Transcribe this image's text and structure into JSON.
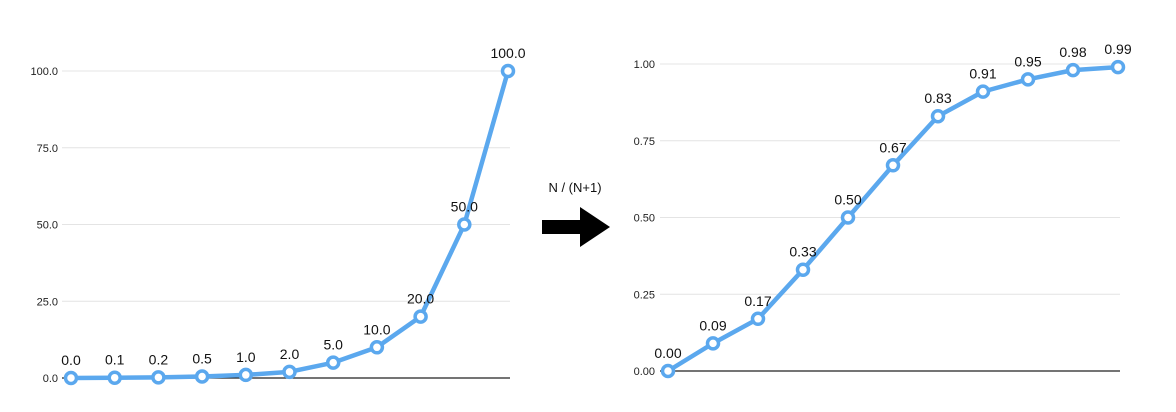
{
  "colors": {
    "series": "#5BA8EE",
    "arrow": "#000000"
  },
  "transform": {
    "label": "N / (N+1)",
    "icon": "right-arrow-icon"
  },
  "chart_data": [
    {
      "type": "line",
      "x": [
        "0.0",
        "0.1",
        "0.2",
        "0.5",
        "1.0",
        "2.0",
        "5.0",
        "10.0",
        "20.0",
        "50.0",
        "100.0"
      ],
      "series": [
        {
          "values": [
            0.0,
            0.1,
            0.2,
            0.5,
            1.0,
            2.0,
            5.0,
            10.0,
            20.0,
            50.0,
            100.0
          ],
          "labels": [
            "0.0",
            "0.1",
            "0.2",
            "0.5",
            "1.0",
            "2.0",
            "5.0",
            "10.0",
            "20.0",
            "50.0",
            "100.0"
          ]
        }
      ],
      "yticks": [
        "0.0",
        "25.0",
        "50.0",
        "75.0",
        "100.0"
      ],
      "ytick_values": [
        0,
        25,
        50,
        75,
        100
      ],
      "ylim": [
        0,
        100
      ],
      "grid": true
    },
    {
      "type": "line",
      "x": [
        "0.00",
        "0.09",
        "0.17",
        "0.33",
        "0.50",
        "0.67",
        "0.83",
        "0.91",
        "0.95",
        "0.98",
        "0.99"
      ],
      "series": [
        {
          "values": [
            0.0,
            0.09,
            0.17,
            0.33,
            0.5,
            0.67,
            0.83,
            0.91,
            0.95,
            0.98,
            0.99
          ],
          "labels": [
            "0.00",
            "0.09",
            "0.17",
            "0.33",
            "0.50",
            "0.67",
            "0.83",
            "0.91",
            "0.95",
            "0.98",
            "0.99"
          ]
        }
      ],
      "yticks": [
        "0.00",
        "0.25",
        "0.50",
        "0.75",
        "1.00"
      ],
      "ytick_values": [
        0,
        0.25,
        0.5,
        0.75,
        1.0
      ],
      "ylim": [
        0,
        1
      ],
      "grid": true
    }
  ]
}
